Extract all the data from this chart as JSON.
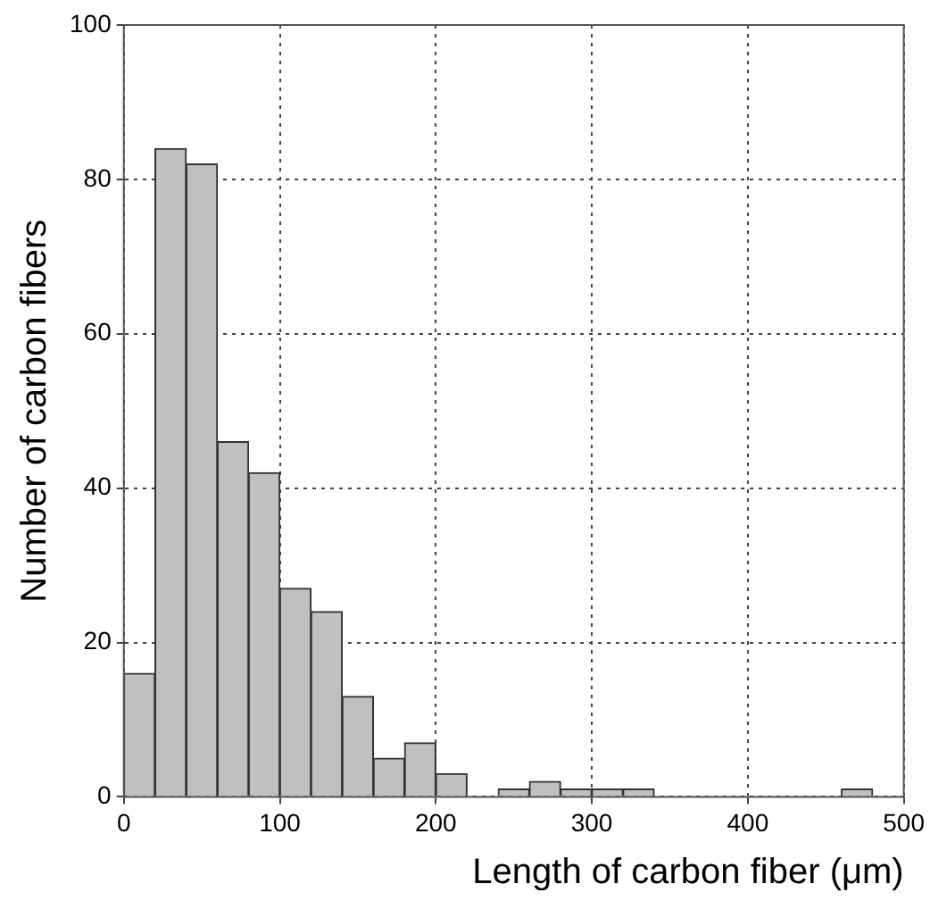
{
  "chart_data": {
    "type": "histogram",
    "xlabel": "Length of carbon fiber (μm)",
    "ylabel": "Number of carbon fibers",
    "bins": [
      0,
      20,
      40,
      60,
      80,
      100,
      120,
      140,
      160,
      180,
      200,
      220,
      240,
      260,
      280,
      300,
      320,
      340,
      360,
      380,
      400,
      420,
      440,
      460,
      480,
      500
    ],
    "values": [
      16,
      84,
      82,
      46,
      42,
      27,
      24,
      13,
      5,
      7,
      3,
      0,
      1,
      2,
      1,
      1,
      1,
      0,
      0,
      0,
      0,
      0,
      0,
      1,
      0
    ],
    "color": "#c0c0c0",
    "xlim": [
      0,
      500
    ],
    "xticks": [
      0,
      100,
      200,
      300,
      400,
      500
    ],
    "ylim": [
      0,
      100
    ],
    "yticks": [
      0,
      20,
      40,
      60,
      80,
      100
    ],
    "grid": true,
    "legend": false
  }
}
